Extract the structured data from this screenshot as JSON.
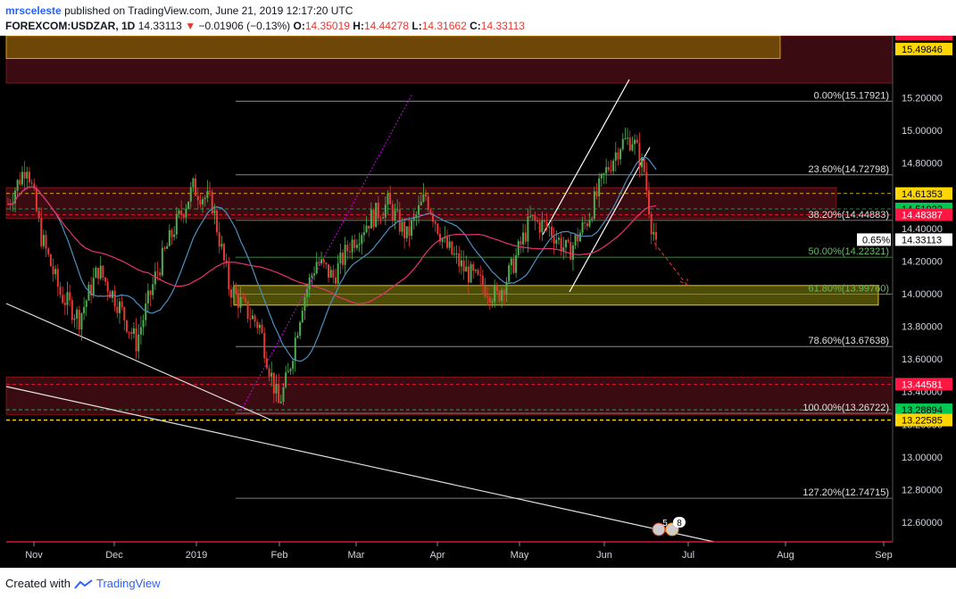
{
  "header": {
    "author": "mrsceleste",
    "published": "published on TradingView.com, June 21, 2019 12:17:20 UTC",
    "symbol": "FOREXCOM:USDZAR, 1D",
    "last": "14.33113",
    "change": "−0.01906 (−0.13%)",
    "o_label": "O:",
    "o": "14.35019",
    "h_label": "H:",
    "h": "14.44278",
    "l_label": "L:",
    "l": "14.31662",
    "c_label": "C:",
    "c": "14.33113"
  },
  "footer": {
    "created_with": "Created with",
    "brand": "TradingView"
  },
  "colors": {
    "up": "#4caf50",
    "down": "#e53935",
    "ma_fast": "#4a90c2",
    "ma_slow": "#e8336e",
    "background": "#000000"
  },
  "chart_data": {
    "type": "candlestick",
    "ylim": [
      12.48,
      15.58
    ],
    "x_ticks": [
      "Nov",
      "Dec",
      "2019",
      "Feb",
      "Mar",
      "Apr",
      "May",
      "Jun",
      "Jul",
      "Aug",
      "Sep"
    ],
    "price_labels": [
      {
        "value": 15.49846,
        "label": "15.49846",
        "bg": "#ffd600",
        "fg": "#000000"
      },
      {
        "value": 14.61353,
        "label": "14.61353",
        "bg": "#ffd600",
        "fg": "#000000"
      },
      {
        "value": 14.51922,
        "label": "14.51922",
        "bg": "#00c853",
        "fg": "#000000"
      },
      {
        "value": 14.48387,
        "label": "14.48387",
        "bg": "#ff1744",
        "fg": "#ffffff"
      },
      {
        "value": 14.33113,
        "label": "14.33113",
        "bg": "#ffffff",
        "fg": "#000000"
      },
      {
        "value": 13.44581,
        "label": "13.44581",
        "bg": "#ff1744",
        "fg": "#ffffff"
      },
      {
        "value": 13.28894,
        "label": "13.28894",
        "bg": "#00c853",
        "fg": "#000000"
      },
      {
        "value": 13.22585,
        "label": "13.22585",
        "bg": "#ffd600",
        "fg": "#000000"
      }
    ],
    "change_badge": "0.65%",
    "fibonacci": [
      {
        "level": "0.00%",
        "value": 15.17921,
        "label": "0.00%(15.17921)",
        "color": "#9e9e9e"
      },
      {
        "level": "23.60%",
        "value": 14.72798,
        "label": "23.60%(14.72798)",
        "color": "#9e9e9e"
      },
      {
        "level": "38.20%",
        "value": 14.44883,
        "label": "38.20%(14.44883)",
        "color": "#9e9e9e"
      },
      {
        "level": "50.00%",
        "value": 14.22321,
        "label": "50.00%(14.22321)",
        "color": "#4caf50"
      },
      {
        "level": "61.80%",
        "value": 13.9976,
        "label": "61.80%(13.99760)",
        "color": "#4caf50"
      },
      {
        "level": "78.60%",
        "value": 13.67638,
        "label": "78.60%(13.67638)",
        "color": "#9e9e9e"
      },
      {
        "level": "100.00%",
        "value": 13.26722,
        "label": "100.00%(13.26722)",
        "color": "#9e9e9e"
      },
      {
        "level": "127.20%",
        "value": 12.74715,
        "label": "127.20%(12.74715)",
        "color": "#9e9e9e"
      }
    ],
    "event_badges": [
      "5",
      "8"
    ],
    "series": [
      {
        "name": "Price",
        "type": "candlestick"
      },
      {
        "name": "Fast MA",
        "color": "#4a90c2"
      },
      {
        "name": "Slow MA",
        "color": "#e8336e"
      }
    ]
  }
}
